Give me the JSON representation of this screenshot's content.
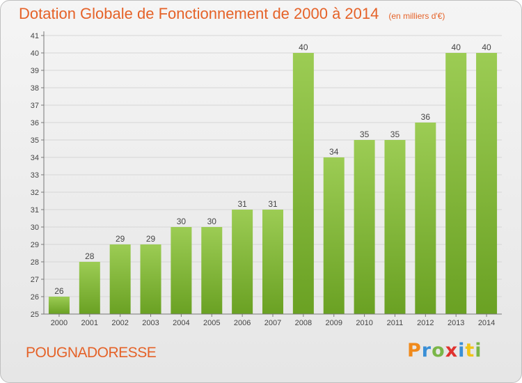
{
  "header": {
    "title": "Dotation Globale de Fonctionnement de 2000 à 2014",
    "subtitle": "(en milliers d'€)"
  },
  "commune": "POUGNADORESSE",
  "logo": {
    "text": "Proxiti",
    "letters": [
      "P",
      "r",
      "o",
      "x",
      "i",
      "t",
      "i"
    ]
  },
  "colors": {
    "title": "#e56228",
    "bar_light": "#9ccc54",
    "bar_dark": "#6aa123",
    "axis": "#777777",
    "grid": "#d6d6d6"
  },
  "chart_data": {
    "type": "bar",
    "title": "Dotation Globale de Fonctionnement de 2000 à 2014",
    "subtitle": "(en milliers d'€)",
    "xlabel": "",
    "ylabel": "",
    "categories": [
      "2000",
      "2001",
      "2002",
      "2003",
      "2004",
      "2005",
      "2006",
      "2007",
      "2008",
      "2009",
      "2010",
      "2011",
      "2012",
      "2013",
      "2014"
    ],
    "values": [
      26,
      28,
      29,
      29,
      30,
      30,
      31,
      31,
      40,
      34,
      35,
      35,
      36,
      40,
      40
    ],
    "ylim": [
      25,
      41
    ],
    "yticks": [
      25,
      26,
      27,
      28,
      29,
      30,
      31,
      32,
      33,
      34,
      35,
      36,
      37,
      38,
      39,
      40,
      41
    ],
    "grid": true,
    "data_labels": true,
    "legend": "none"
  }
}
